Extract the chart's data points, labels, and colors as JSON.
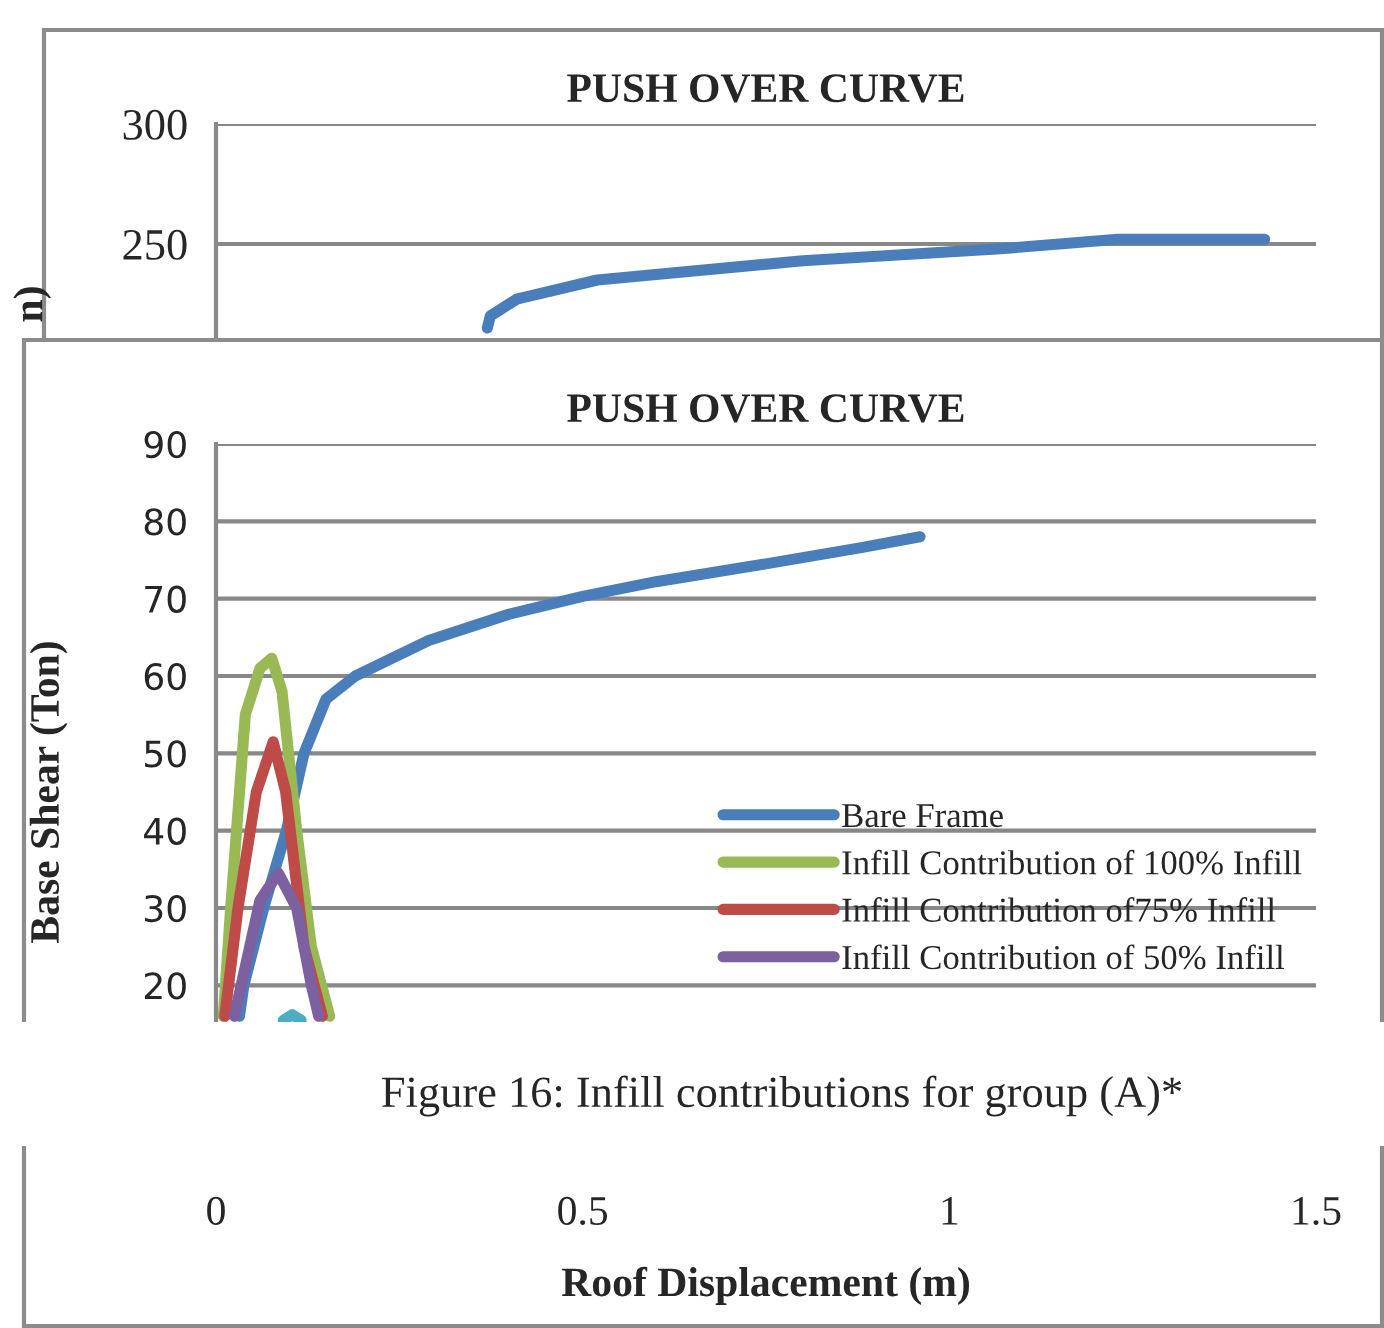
{
  "chart_data": [
    {
      "type": "line",
      "title": "PUSH OVER CURVE",
      "ylabel": "n)",
      "xlim": [
        0,
        1.5
      ],
      "ylim": [
        0,
        300
      ],
      "yticks": [
        250,
        300
      ],
      "tick_labels": "y",
      "grid": "y",
      "legend": false,
      "series": [
        {
          "color": "#4a7ebb",
          "x": [
            0.37,
            0.374,
            0.41,
            0.52,
            0.8,
            1.07,
            1.23,
            1.43
          ],
          "values": [
            215,
            220,
            227,
            235,
            243,
            248,
            252,
            252
          ]
        }
      ]
    },
    {
      "type": "line",
      "title": "PUSH OVER CURVE",
      "xlabel": "Roof Displacement (m)",
      "ylabel": "Base Shear (Ton)",
      "xlim": [
        0,
        1.5
      ],
      "xticks": [
        0,
        0.5,
        1,
        1.5
      ],
      "ylim": [
        0,
        90
      ],
      "yticks": [
        20,
        30,
        40,
        50,
        60,
        70,
        80,
        90
      ],
      "grid": "y",
      "legend": "right",
      "annotations": [
        "Figure 16: Infill contributions for group (A)*"
      ],
      "series": [
        {
          "name": "Bare Frame",
          "color": "#4a7ebb",
          "x": [
            0.032,
            0.038,
            0.065,
            0.096,
            0.12,
            0.15,
            0.19,
            0.29,
            0.4,
            0.5,
            0.6,
            0.75,
            0.88,
            0.96
          ],
          "values": [
            16,
            20,
            30,
            40,
            50,
            57,
            60,
            64.6,
            68,
            70.3,
            72.2,
            74.5,
            76.6,
            78
          ]
        },
        {
          "name": "Infill Contribution of 100% Infill",
          "color": "#98b954",
          "x": [
            0.01,
            0.02,
            0.04,
            0.06,
            0.076,
            0.09,
            0.11,
            0.13,
            0.155
          ],
          "values": [
            16,
            30,
            55,
            61,
            62.3,
            58,
            40,
            25,
            16
          ]
        },
        {
          "name": "Infill Contribution of75% Infill",
          "color": "#be4b48",
          "x": [
            0.012,
            0.03,
            0.055,
            0.078,
            0.095,
            0.12,
            0.145
          ],
          "values": [
            16,
            30,
            45,
            51.5,
            45,
            25,
            16
          ]
        },
        {
          "name": "Infill Contribution of 50% Infill",
          "color": "#7d60a0",
          "x": [
            0.025,
            0.06,
            0.085,
            0.11,
            0.13,
            0.14
          ],
          "values": [
            16,
            31,
            34.5,
            30,
            20,
            16
          ]
        },
        {
          "color": "#4bacc6",
          "x": [
            0.092,
            0.104,
            0.116
          ],
          "values": [
            15.5,
            16.2,
            15.5
          ]
        }
      ]
    }
  ]
}
